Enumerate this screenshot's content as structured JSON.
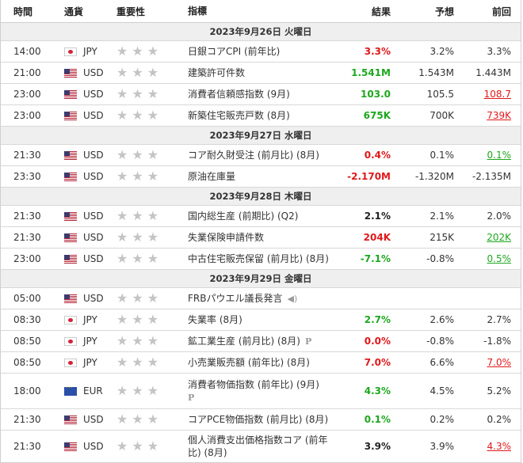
{
  "headers": {
    "time": "時間",
    "currency": "通貨",
    "importance": "重要性",
    "indicator": "指標",
    "actual": "結果",
    "forecast": "予想",
    "previous": "前回"
  },
  "dates": {
    "d26": "2023年9月26日 火曜日",
    "d27": "2023年9月27日 水曜日",
    "d28": "2023年9月28日 木曜日",
    "d29": "2023年9月29日 金曜日"
  },
  "rows": [
    {
      "time": "14:00",
      "cur": "JPY",
      "ind": "日銀コアCPI (前年比)",
      "act": "3.3%",
      "fc": "3.2%",
      "pr": "3.3%",
      "act_color": "red",
      "pr_style": "plain"
    },
    {
      "time": "21:00",
      "cur": "USD",
      "ind": "建築許可件数",
      "act": "1.541M",
      "fc": "1.543M",
      "pr": "1.443M",
      "act_color": "green",
      "pr_style": "plain"
    },
    {
      "time": "23:00",
      "cur": "USD",
      "ind": "消費者信頼感指数 (9月)",
      "act": "103.0",
      "fc": "105.5",
      "pr": "108.7",
      "act_color": "green",
      "pr_style": "ul-red"
    },
    {
      "time": "23:00",
      "cur": "USD",
      "ind": "新築住宅販売戸数 (8月)",
      "act": "675K",
      "fc": "700K",
      "pr": "739K",
      "act_color": "green",
      "pr_style": "ul-red"
    },
    {
      "time": "21:30",
      "cur": "USD",
      "ind": "コア耐久財受注 (前月比) (8月)",
      "act": "0.4%",
      "fc": "0.1%",
      "pr": "0.1%",
      "act_color": "red",
      "pr_style": "ul-green"
    },
    {
      "time": "23:30",
      "cur": "USD",
      "ind": "原油在庫量",
      "act": "-2.170M",
      "fc": "-1.320M",
      "pr": "-2.135M",
      "act_color": "red",
      "pr_style": "plain"
    },
    {
      "time": "21:30",
      "cur": "USD",
      "ind": "国内総生産 (前期比) (Q2)",
      "act": "2.1%",
      "fc": "2.1%",
      "pr": "2.0%",
      "act_color": "black",
      "pr_style": "plain"
    },
    {
      "time": "21:30",
      "cur": "USD",
      "ind": "失業保険申請件数",
      "act": "204K",
      "fc": "215K",
      "pr": "202K",
      "act_color": "red",
      "pr_style": "ul-green"
    },
    {
      "time": "23:00",
      "cur": "USD",
      "ind": "中古住宅販売保留 (前月比) (8月)",
      "act": "-7.1%",
      "fc": "-0.8%",
      "pr": "0.5%",
      "act_color": "green",
      "pr_style": "ul-green"
    },
    {
      "time": "05:00",
      "cur": "USD",
      "ind": "FRBパウエル議長発言",
      "act": "",
      "fc": "",
      "pr": "",
      "act_color": "black",
      "pr_style": "plain"
    },
    {
      "time": "08:30",
      "cur": "JPY",
      "ind": "失業率 (8月)",
      "act": "2.7%",
      "fc": "2.6%",
      "pr": "2.7%",
      "act_color": "green",
      "pr_style": "plain"
    },
    {
      "time": "08:50",
      "cur": "JPY",
      "ind": "鉱工業生産 (前月比) (8月)",
      "act": "0.0%",
      "fc": "-0.8%",
      "pr": "-1.8%",
      "act_color": "red",
      "pr_style": "plain"
    },
    {
      "time": "08:50",
      "cur": "JPY",
      "ind": "小売業販売額 (前年比) (8月)",
      "act": "7.0%",
      "fc": "6.6%",
      "pr": "7.0%",
      "act_color": "red",
      "pr_style": "ul-red"
    },
    {
      "time": "18:00",
      "cur": "EUR",
      "ind": "消費者物価指数 (前年比) (9月)",
      "act": "4.3%",
      "fc": "4.5%",
      "pr": "5.2%",
      "act_color": "green",
      "pr_style": "plain"
    },
    {
      "time": "21:30",
      "cur": "USD",
      "ind": "コアPCE物価指数 (前月比) (8月)",
      "act": "0.1%",
      "fc": "0.2%",
      "pr": "0.2%",
      "act_color": "green",
      "pr_style": "plain"
    },
    {
      "time": "21:30",
      "cur": "USD",
      "ind": "個人消費支出価格指数コア (前年比) (8月)",
      "act": "3.9%",
      "fc": "3.9%",
      "pr": "4.3%",
      "act_color": "black",
      "pr_style": "ul-red"
    }
  ],
  "icons": {
    "star": "star-icon",
    "preliminary": "P",
    "speech": "speaker-icon"
  },
  "colors": {
    "up": "#e0191b",
    "down": "#1ea71e",
    "date_bg": "#efefef"
  }
}
